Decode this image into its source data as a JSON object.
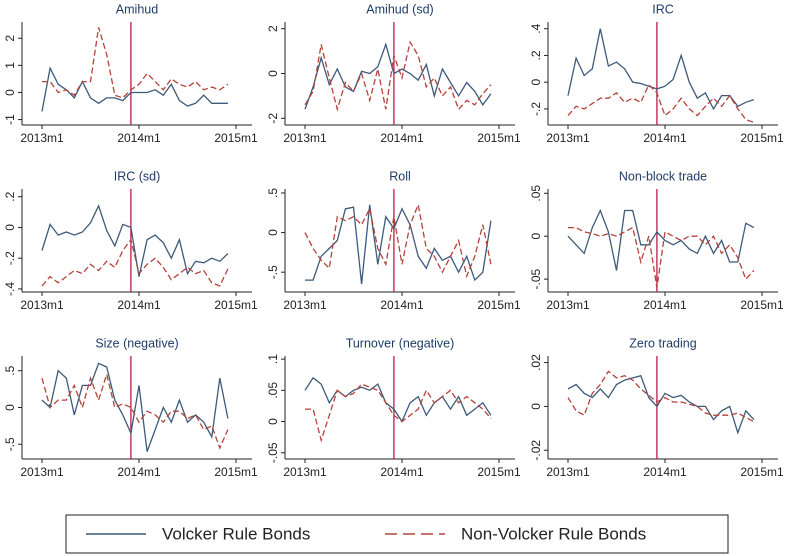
{
  "chart_data": [
    {
      "type": "line",
      "title": "Amihud",
      "x": [
        "2013m1",
        "2013m2",
        "2013m3",
        "2013m4",
        "2013m5",
        "2013m6",
        "2013m7",
        "2013m8",
        "2013m9",
        "2013m10",
        "2013m11",
        "2013m12",
        "2014m1",
        "2014m2",
        "2014m3",
        "2014m4",
        "2014m5",
        "2014m6",
        "2014m7",
        "2014m8",
        "2014m9",
        "2014m10",
        "2014m11",
        "2014m12"
      ],
      "xlim": [
        "2013m1",
        "2015m1"
      ],
      "xticks": [
        "2013m1",
        "2014m1",
        "2015m1"
      ],
      "event_x": "2013m12",
      "event_color": "#c0184a",
      "ylim": [
        -1.2,
        2.6
      ],
      "yticks": [
        -1,
        0,
        1,
        2
      ],
      "series": [
        {
          "name": "Volcker Rule Bonds",
          "color": "#3d5a7a",
          "dash": false,
          "values": [
            -0.7,
            0.9,
            0.3,
            0.1,
            -0.2,
            0.4,
            -0.2,
            -0.4,
            -0.2,
            -0.2,
            -0.3,
            0,
            0,
            0,
            0.1,
            -0.1,
            0.3,
            -0.3,
            -0.5,
            -0.4,
            -0.1,
            -0.4,
            -0.4,
            -0.4
          ]
        },
        {
          "name": "Non-Volcker Rule Bonds",
          "color": "#b5423b",
          "dash": true,
          "values": [
            0.4,
            0.4,
            0,
            0.1,
            -0.1,
            0.4,
            0.4,
            2.4,
            1.4,
            -0.1,
            -0.2,
            0.1,
            0.3,
            0.7,
            0.4,
            0.1,
            0.5,
            0.3,
            0.2,
            0.4,
            0.1,
            0.2,
            0.1,
            0.3
          ]
        }
      ]
    },
    {
      "type": "line",
      "title": "Amihud (sd)",
      "x": [
        "2013m1",
        "2013m2",
        "2013m3",
        "2013m4",
        "2013m5",
        "2013m6",
        "2013m7",
        "2013m8",
        "2013m9",
        "2013m10",
        "2013m11",
        "2013m12",
        "2014m1",
        "2014m2",
        "2014m3",
        "2014m4",
        "2014m5",
        "2014m6",
        "2014m7",
        "2014m8",
        "2014m9",
        "2014m10",
        "2014m11",
        "2014m12"
      ],
      "xlim": [
        "2013m1",
        "2015m1"
      ],
      "xticks": [
        "2013m1",
        "2014m1",
        "2015m1"
      ],
      "event_x": "2013m12",
      "event_color": "#c0184a",
      "ylim": [
        -2.3,
        2.3
      ],
      "yticks": [
        -2,
        0,
        2
      ],
      "series": [
        {
          "name": "Volcker Rule Bonds",
          "color": "#3d5a7a",
          "dash": false,
          "values": [
            -1.6,
            -0.6,
            0.7,
            -0.5,
            0.2,
            -0.6,
            -0.8,
            0.1,
            0,
            0.3,
            1.3,
            0,
            0.2,
            0,
            -0.3,
            0.4,
            -1,
            0.2,
            -0.4,
            -1,
            -0.4,
            -0.8,
            -1.4,
            -0.9
          ]
        },
        {
          "name": "Non-Volcker Rule Bonds",
          "color": "#b5423b",
          "dash": true,
          "values": [
            -1.4,
            -0.8,
            1.3,
            -0.2,
            -1.6,
            -0.4,
            -0.8,
            0,
            -1.2,
            0.2,
            -1.6,
            0.8,
            -0.2,
            1.4,
            0.8,
            -0.6,
            -0.2,
            -1,
            -0.6,
            -1.6,
            -1.2,
            -1.4,
            -0.9,
            -0.5
          ]
        }
      ]
    },
    {
      "type": "line",
      "title": "IRC",
      "x": [
        "2013m1",
        "2013m2",
        "2013m3",
        "2013m4",
        "2013m5",
        "2013m6",
        "2013m7",
        "2013m8",
        "2013m9",
        "2013m10",
        "2013m11",
        "2013m12",
        "2014m1",
        "2014m2",
        "2014m3",
        "2014m4",
        "2014m5",
        "2014m6",
        "2014m7",
        "2014m8",
        "2014m9",
        "2014m10",
        "2014m11",
        "2014m12"
      ],
      "xlim": [
        "2013m1",
        "2015m1"
      ],
      "xticks": [
        "2013m1",
        "2014m1",
        "2015m1"
      ],
      "event_x": "2013m12",
      "event_color": "#c0184a",
      "ylim": [
        -0.32,
        0.45
      ],
      "yticks": [
        {
          "value": -0.2,
          "label": "-.2"
        },
        0,
        {
          "value": 0.2,
          "label": ".2"
        },
        {
          "value": 0.4,
          "label": ".4"
        }
      ],
      "series": [
        {
          "name": "Volcker Rule Bonds",
          "color": "#3d5a7a",
          "dash": false,
          "values": [
            -0.1,
            0.18,
            0.05,
            0.1,
            0.4,
            0.12,
            0.15,
            0.1,
            0,
            -0.01,
            -0.03,
            -0.05,
            -0.03,
            0.02,
            0.2,
            0,
            -0.12,
            -0.08,
            -0.2,
            -0.1,
            -0.1,
            -0.18,
            -0.15,
            -0.13
          ]
        },
        {
          "name": "Non-Volcker Rule Bonds",
          "color": "#b5423b",
          "dash": true,
          "values": [
            -0.25,
            -0.18,
            -0.2,
            -0.16,
            -0.12,
            -0.12,
            -0.08,
            -0.15,
            -0.12,
            -0.15,
            -0.02,
            -0.08,
            -0.25,
            -0.2,
            -0.12,
            -0.2,
            -0.25,
            -0.18,
            -0.12,
            -0.18,
            -0.1,
            -0.2,
            -0.28,
            -0.3
          ]
        }
      ]
    },
    {
      "type": "line",
      "title": "IRC (sd)",
      "x": [
        "2013m1",
        "2013m2",
        "2013m3",
        "2013m4",
        "2013m5",
        "2013m6",
        "2013m7",
        "2013m8",
        "2013m9",
        "2013m10",
        "2013m11",
        "2013m12",
        "2014m1",
        "2014m2",
        "2014m3",
        "2014m4",
        "2014m5",
        "2014m6",
        "2014m7",
        "2014m8",
        "2014m9",
        "2014m10",
        "2014m11",
        "2014m12"
      ],
      "xlim": [
        "2013m1",
        "2015m1"
      ],
      "xticks": [
        "2013m1",
        "2014m1",
        "2015m1"
      ],
      "event_x": "2013m12",
      "event_color": "#c0184a",
      "ylim": [
        -0.42,
        0.25
      ],
      "yticks": [
        {
          "value": -0.4,
          "label": "-.4"
        },
        {
          "value": -0.2,
          "label": "-.2"
        },
        0,
        {
          "value": 0.2,
          "label": ".2"
        }
      ],
      "series": [
        {
          "name": "Volcker Rule Bonds",
          "color": "#3d5a7a",
          "dash": false,
          "values": [
            -0.15,
            0.02,
            -0.05,
            -0.03,
            -0.05,
            -0.03,
            0.03,
            0.14,
            -0.02,
            -0.12,
            0.02,
            0,
            -0.32,
            -0.08,
            -0.05,
            -0.1,
            -0.2,
            -0.08,
            -0.3,
            -0.22,
            -0.23,
            -0.2,
            -0.22,
            -0.17
          ]
        },
        {
          "name": "Non-Volcker Rule Bonds",
          "color": "#b5423b",
          "dash": true,
          "values": [
            -0.38,
            -0.32,
            -0.36,
            -0.32,
            -0.28,
            -0.3,
            -0.24,
            -0.28,
            -0.22,
            -0.26,
            -0.15,
            -0.08,
            -0.3,
            -0.24,
            -0.2,
            -0.26,
            -0.34,
            -0.3,
            -0.26,
            -0.3,
            -0.28,
            -0.36,
            -0.38,
            -0.27
          ]
        }
      ]
    },
    {
      "type": "line",
      "title": "Roll",
      "x": [
        "2013m1",
        "2013m2",
        "2013m3",
        "2013m4",
        "2013m5",
        "2013m6",
        "2013m7",
        "2013m8",
        "2013m9",
        "2013m10",
        "2013m11",
        "2013m12",
        "2014m1",
        "2014m2",
        "2014m3",
        "2014m4",
        "2014m5",
        "2014m6",
        "2014m7",
        "2014m8",
        "2014m9",
        "2014m10",
        "2014m11",
        "2014m12"
      ],
      "xlim": [
        "2013m1",
        "2015m1"
      ],
      "xticks": [
        "2013m1",
        "2014m1",
        "2015m1"
      ],
      "event_x": "2013m12",
      "event_color": "#c0184a",
      "ylim": [
        -0.75,
        0.55
      ],
      "yticks": [
        {
          "value": -0.5,
          "label": "-.5"
        },
        0,
        {
          "value": 0.5,
          "label": ".5"
        }
      ],
      "series": [
        {
          "name": "Volcker Rule Bonds",
          "color": "#3d5a7a",
          "dash": false,
          "values": [
            -0.6,
            -0.6,
            -0.3,
            -0.2,
            -0.1,
            0.3,
            0.32,
            -0.65,
            0.35,
            -0.4,
            0.2,
            0.05,
            0.3,
            0.1,
            -0.3,
            -0.45,
            -0.2,
            -0.35,
            -0.3,
            -0.5,
            -0.3,
            -0.6,
            -0.5,
            0.15
          ]
        },
        {
          "name": "Non-Volcker Rule Bonds",
          "color": "#b5423b",
          "dash": true,
          "values": [
            0,
            -0.2,
            -0.35,
            -0.45,
            0.2,
            0.15,
            0.2,
            0.1,
            0.3,
            -0.2,
            -0.4,
            0.2,
            -0.4,
            0.1,
            0.35,
            -0.2,
            -0.3,
            -0.5,
            -0.3,
            -0.1,
            -0.55,
            -0.3,
            0.1,
            -0.4
          ]
        }
      ]
    },
    {
      "type": "line",
      "title": "Non-block trade",
      "x": [
        "2013m1",
        "2013m2",
        "2013m3",
        "2013m4",
        "2013m5",
        "2013m6",
        "2013m7",
        "2013m8",
        "2013m9",
        "2013m10",
        "2013m11",
        "2013m12",
        "2014m1",
        "2014m2",
        "2014m3",
        "2014m4",
        "2014m5",
        "2014m6",
        "2014m7",
        "2014m8",
        "2014m9",
        "2014m10",
        "2014m11",
        "2014m12"
      ],
      "xlim": [
        "2013m1",
        "2015m1"
      ],
      "xticks": [
        "2013m1",
        "2014m1",
        "2015m1"
      ],
      "event_x": "2013m12",
      "event_color": "#c0184a",
      "ylim": [
        -0.065,
        0.055
      ],
      "yticks": [
        {
          "value": -0.05,
          "label": "-.05"
        },
        0,
        {
          "value": 0.05,
          "label": ".05"
        }
      ],
      "series": [
        {
          "name": "Volcker Rule Bonds",
          "color": "#3d5a7a",
          "dash": false,
          "values": [
            0,
            -0.01,
            -0.02,
            0.01,
            0.03,
            0.005,
            -0.04,
            0.03,
            0.03,
            -0.01,
            -0.01,
            0.005,
            -0.005,
            -0.01,
            -0.005,
            -0.015,
            -0.02,
            0,
            -0.02,
            -0.005,
            -0.03,
            -0.03,
            0.015,
            0.01
          ]
        },
        {
          "name": "Non-Volcker Rule Bonds",
          "color": "#b5423b",
          "dash": true,
          "values": [
            0.01,
            0.01,
            0.005,
            0.003,
            0,
            0.003,
            0,
            0.005,
            0.01,
            -0.03,
            0,
            -0.06,
            0.005,
            0,
            -0.005,
            0,
            0,
            -0.01,
            0,
            -0.02,
            -0.01,
            -0.025,
            -0.05,
            -0.04
          ]
        }
      ]
    },
    {
      "type": "line",
      "title": "Size (negative)",
      "x": [
        "2013m1",
        "2013m2",
        "2013m3",
        "2013m4",
        "2013m5",
        "2013m6",
        "2013m7",
        "2013m8",
        "2013m9",
        "2013m10",
        "2013m11",
        "2013m12",
        "2014m1",
        "2014m2",
        "2014m3",
        "2014m4",
        "2014m5",
        "2014m6",
        "2014m7",
        "2014m8",
        "2014m9",
        "2014m10",
        "2014m11",
        "2014m12"
      ],
      "xlim": [
        "2013m1",
        "2015m1"
      ],
      "xticks": [
        "2013m1",
        "2014m1",
        "2015m1"
      ],
      "event_x": "2013m12",
      "event_color": "#c0184a",
      "ylim": [
        -0.7,
        0.7
      ],
      "yticks": [
        {
          "value": -0.5,
          "label": "-.5"
        },
        0,
        {
          "value": 0.5,
          "label": ".5"
        }
      ],
      "series": [
        {
          "name": "Volcker Rule Bonds",
          "color": "#3d5a7a",
          "dash": false,
          "values": [
            0.1,
            0,
            0.5,
            0.4,
            -0.1,
            0.3,
            0.3,
            0.6,
            0.55,
            0.1,
            -0.1,
            -0.35,
            0.3,
            -0.6,
            -0.3,
            0,
            -0.2,
            0.1,
            -0.2,
            -0.1,
            -0.2,
            -0.4,
            0.4,
            -0.15
          ]
        },
        {
          "name": "Non-Volcker Rule Bonds",
          "color": "#b5423b",
          "dash": true,
          "values": [
            0.4,
            0,
            0.1,
            0.1,
            0.3,
            0,
            0.4,
            0.1,
            0.45,
            0,
            0.05,
            0,
            -0.2,
            -0.05,
            -0.1,
            -0.2,
            -0.05,
            -0.05,
            -0.15,
            -0.1,
            -0.3,
            -0.25,
            -0.55,
            -0.3
          ]
        }
      ]
    },
    {
      "type": "line",
      "title": "Turnover (negative)",
      "x": [
        "2013m1",
        "2013m2",
        "2013m3",
        "2013m4",
        "2013m5",
        "2013m6",
        "2013m7",
        "2013m8",
        "2013m9",
        "2013m10",
        "2013m11",
        "2013m12",
        "2014m1",
        "2014m2",
        "2014m3",
        "2014m4",
        "2014m5",
        "2014m6",
        "2014m7",
        "2014m8",
        "2014m9",
        "2014m10",
        "2014m11",
        "2014m12"
      ],
      "xlim": [
        "2013m1",
        "2015m1"
      ],
      "xticks": [
        "2013m1",
        "2014m1",
        "2015m1"
      ],
      "event_x": "2013m12",
      "event_color": "#c0184a",
      "ylim": [
        -0.06,
        0.105
      ],
      "yticks": [
        {
          "value": -0.05,
          "label": "-.05"
        },
        0,
        {
          "value": 0.05,
          "label": ".05"
        },
        {
          "value": 0.1,
          "label": ".1"
        }
      ],
      "series": [
        {
          "name": "Volcker Rule Bonds",
          "color": "#3d5a7a",
          "dash": false,
          "values": [
            0.05,
            0.07,
            0.06,
            0.03,
            0.05,
            0.04,
            0.05,
            0.055,
            0.05,
            0.06,
            0.03,
            0.02,
            0,
            0.03,
            0.04,
            0.01,
            0.03,
            0.04,
            0.02,
            0.04,
            0.01,
            0.02,
            0.03,
            0.01
          ]
        },
        {
          "name": "Non-Volcker Rule Bonds",
          "color": "#b5423b",
          "dash": true,
          "values": [
            0.02,
            0.02,
            -0.03,
            0.01,
            0.05,
            0.04,
            0.045,
            0.06,
            0.055,
            0.05,
            0.03,
            0.01,
            0,
            0.01,
            0.02,
            0.05,
            0.03,
            0.04,
            0.05,
            0.03,
            0.04,
            0.03,
            0.02,
            0.005
          ]
        }
      ]
    },
    {
      "type": "line",
      "title": "Zero trading",
      "x": [
        "2013m1",
        "2013m2",
        "2013m3",
        "2013m4",
        "2013m5",
        "2013m6",
        "2013m7",
        "2013m8",
        "2013m9",
        "2013m10",
        "2013m11",
        "2013m12",
        "2014m1",
        "2014m2",
        "2014m3",
        "2014m4",
        "2014m5",
        "2014m6",
        "2014m7",
        "2014m8",
        "2014m9",
        "2014m10",
        "2014m11",
        "2014m12"
      ],
      "xlim": [
        "2013m1",
        "2015m1"
      ],
      "xticks": [
        "2013m1",
        "2014m1",
        "2015m1"
      ],
      "event_x": "2013m12",
      "event_color": "#c0184a",
      "ylim": [
        -0.024,
        0.023
      ],
      "yticks": [
        {
          "value": -0.02,
          "label": "-.02"
        },
        0,
        {
          "value": 0.02,
          "label": ".02"
        }
      ],
      "series": [
        {
          "name": "Volcker Rule Bonds",
          "color": "#3d5a7a",
          "dash": false,
          "values": [
            0.008,
            0.01,
            0.006,
            0.004,
            0.008,
            0.004,
            0.01,
            0.012,
            0.013,
            0.014,
            0.004,
            0,
            0.006,
            0.004,
            0.005,
            0.002,
            0,
            0,
            -0.006,
            -0.002,
            0,
            -0.012,
            -0.002,
            -0.006
          ]
        },
        {
          "name": "Non-Volcker Rule Bonds",
          "color": "#b5423b",
          "dash": true,
          "values": [
            0.004,
            -0.002,
            -0.004,
            0.006,
            0.01,
            0.016,
            0.013,
            0.014,
            0.012,
            0.008,
            0.005,
            0.002,
            0.004,
            0.002,
            0.002,
            0.001,
            0,
            -0.003,
            -0.004,
            -0.004,
            -0.004,
            -0.003,
            -0.005,
            -0.007
          ]
        }
      ]
    }
  ]
}
